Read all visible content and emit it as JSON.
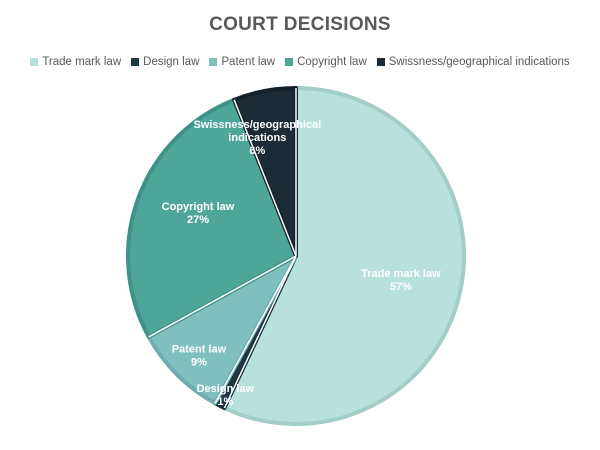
{
  "chart_data": {
    "type": "pie",
    "title": "COURT DECISIONS",
    "legend_position": "top",
    "categories": [
      "Trade mark law",
      "Design law",
      "Patent law",
      "Copyright law",
      "Swissness/geographical indications"
    ],
    "values": [
      57,
      1,
      9,
      27,
      6
    ],
    "value_labels": [
      "57%",
      "1%",
      "9%",
      "27%",
      "6%"
    ],
    "label_lines": [
      [
        "Trade mark law"
      ],
      [
        "Design law"
      ],
      [
        "Patent law"
      ],
      [
        "Copyright law"
      ],
      [
        "Swissness/geographical",
        "indications"
      ]
    ],
    "colors": [
      "#b9e1dc",
      "#1e3944",
      "#7fbfc0",
      "#4ea69a",
      "#1b2b37"
    ],
    "edge_colors": [
      "#a3cdc7",
      "#17303a",
      "#6eacaf",
      "#3e9288",
      "#13212b"
    ],
    "label_colors": [
      "#ffffff",
      "#ffffff",
      "#ffffff",
      "#ffffff",
      "#ffffff"
    ]
  }
}
